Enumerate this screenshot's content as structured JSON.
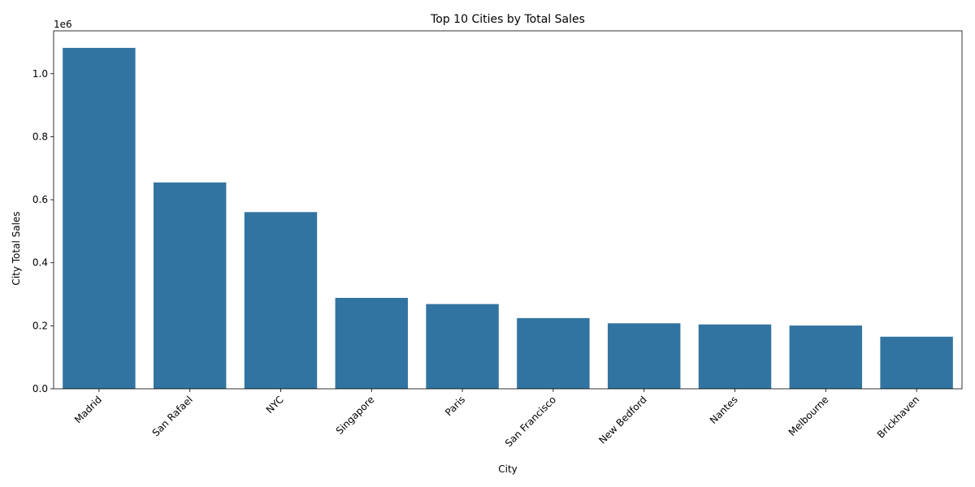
{
  "chart_data": {
    "type": "bar",
    "title": "Top 10 Cities by Total Sales",
    "xlabel": "City",
    "ylabel": "City Total Sales",
    "scale_label": "1e6",
    "categories": [
      "Madrid",
      "San Rafael",
      "NYC",
      "Singapore",
      "Paris",
      "San Francisco",
      "New Bedford",
      "Nantes",
      "Melbourne",
      "Brickhaven"
    ],
    "values": [
      1082000,
      654900,
      560800,
      288500,
      268900,
      224400,
      207900,
      204300,
      200700,
      165300
    ],
    "ylim": [
      0,
      1136000
    ],
    "yticks": [
      0,
      200000,
      400000,
      600000,
      800000,
      1000000
    ],
    "ytick_labels": [
      "0.0",
      "0.2",
      "0.4",
      "0.6",
      "0.8",
      "1.0"
    ],
    "bar_color": "#3274a1",
    "grid": false,
    "legend": "none"
  }
}
